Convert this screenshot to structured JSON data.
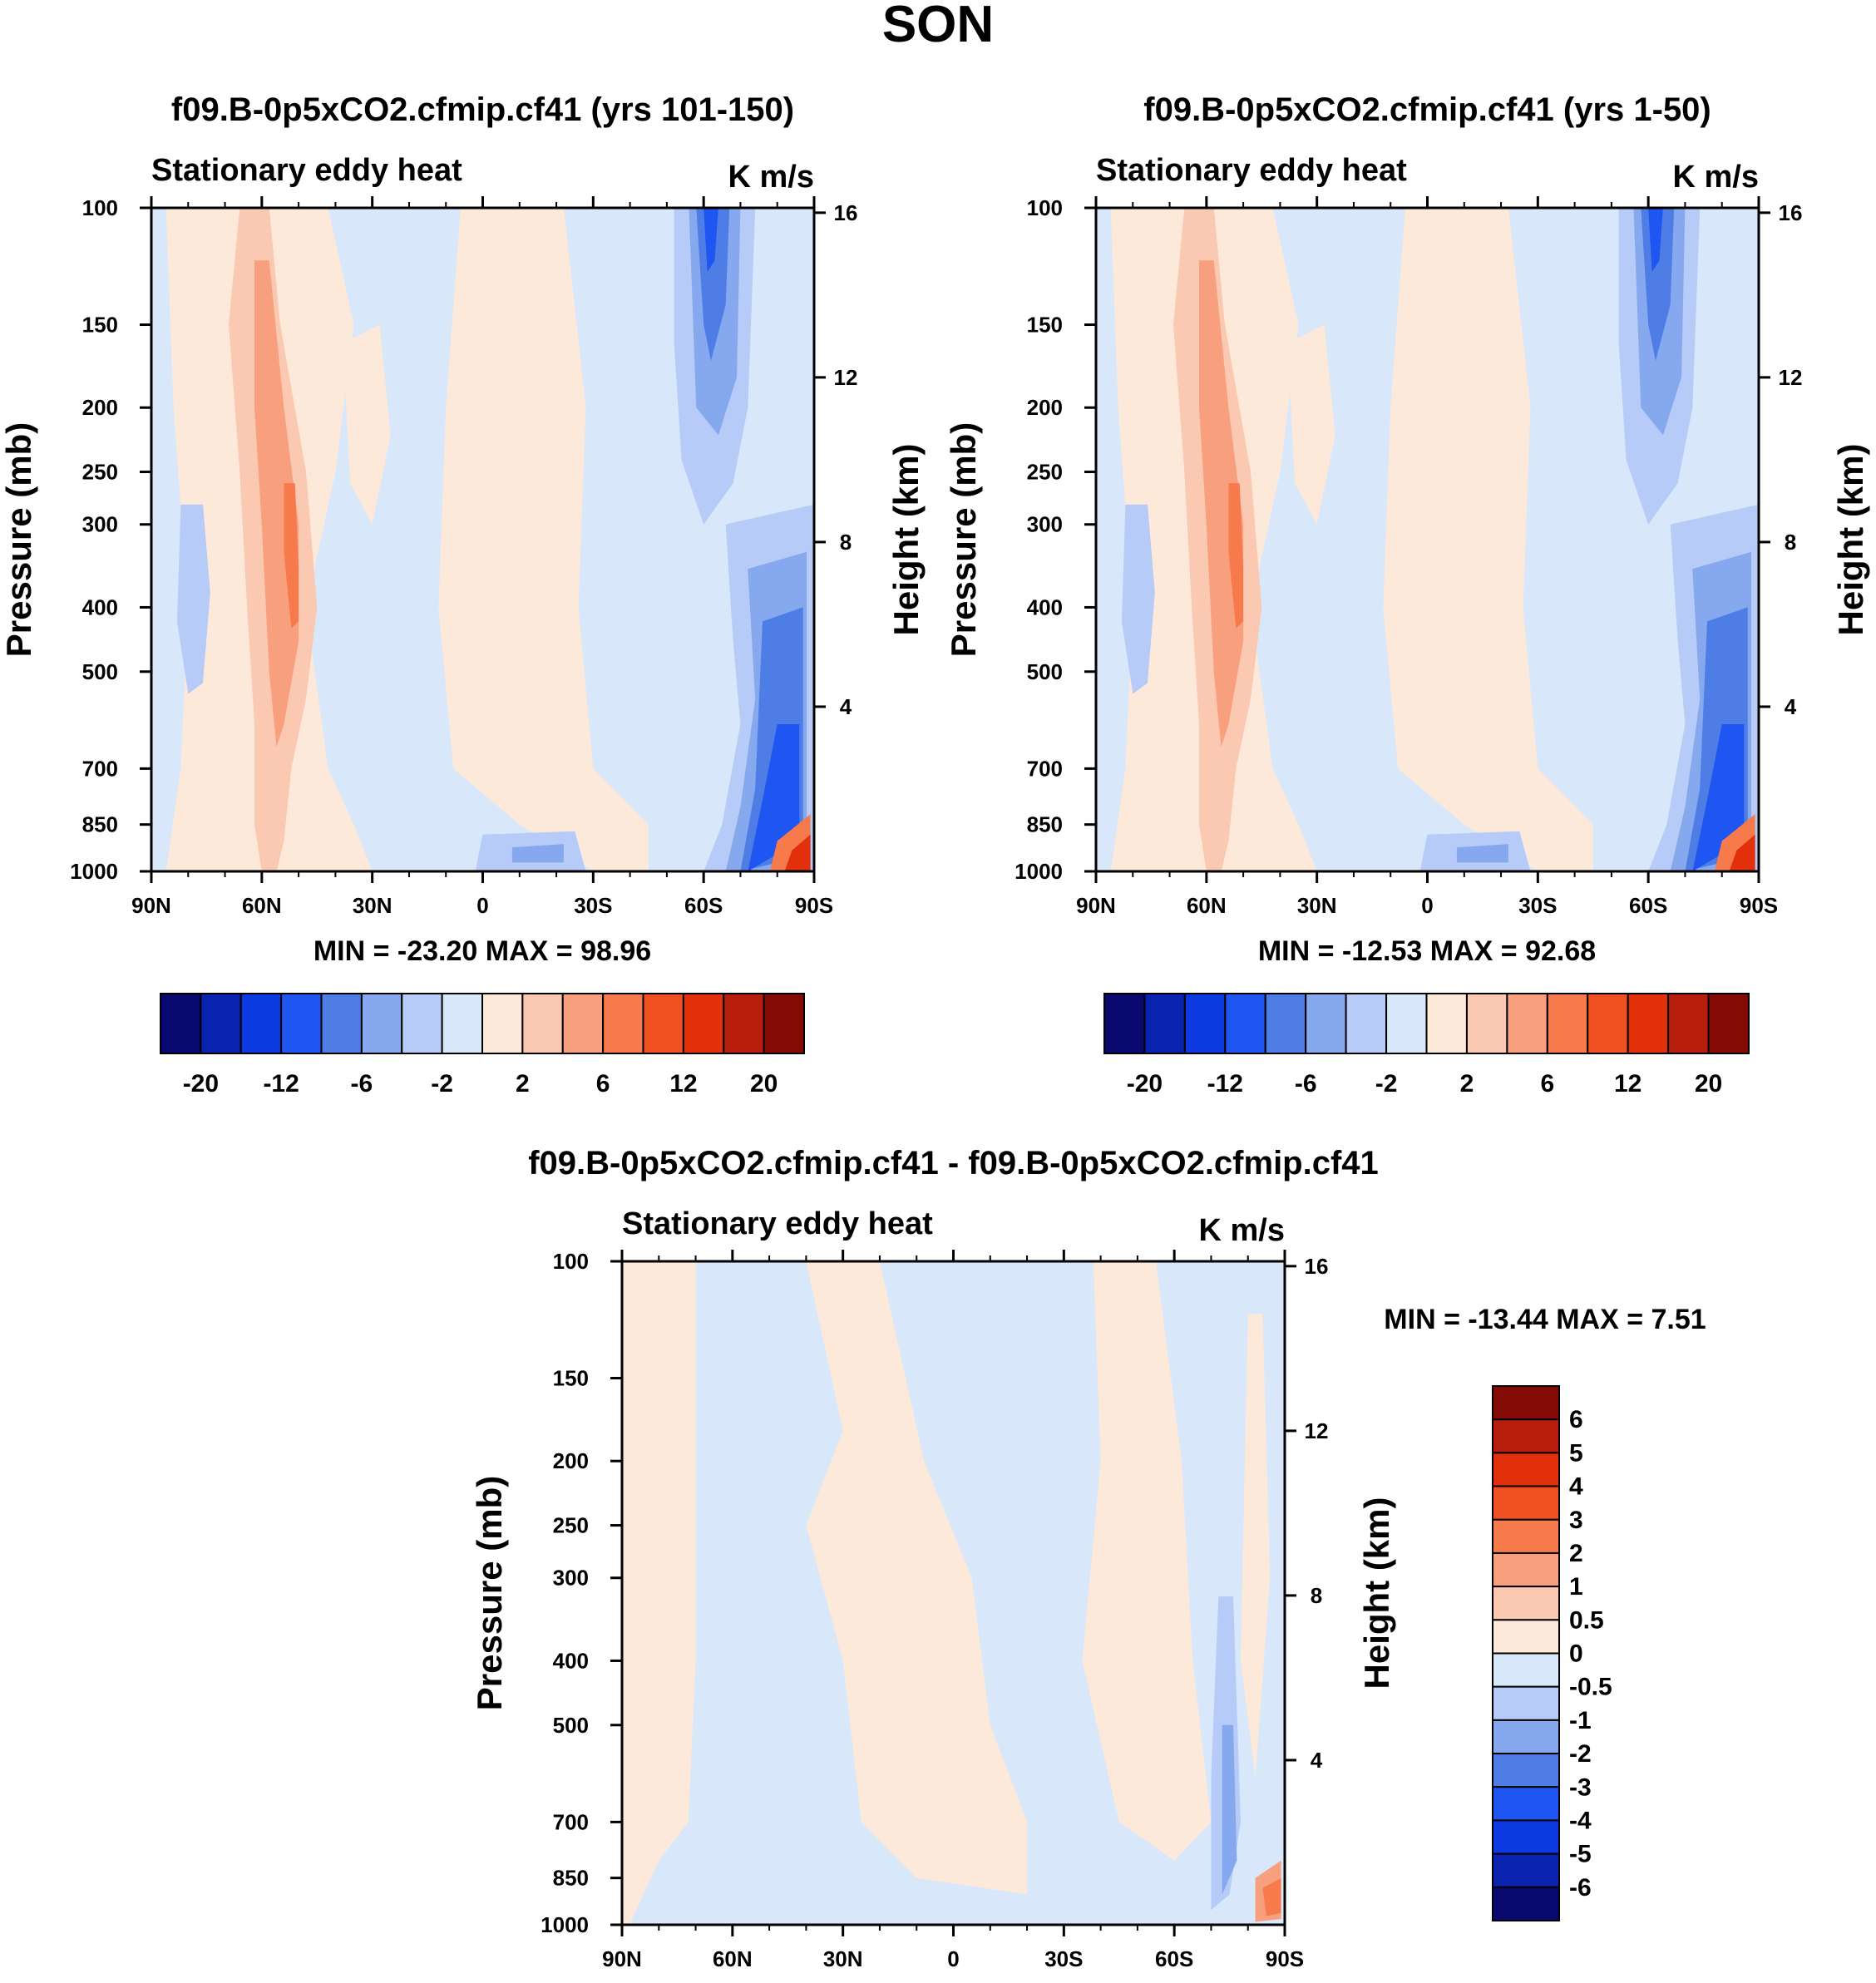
{
  "figure": {
    "season_title": "SON"
  },
  "chart_data": [
    {
      "type": "heatmap",
      "title": "f09.B-0p5xCO2.cfmip.cf41 (yrs 101-150)",
      "left_string": "Stationary eddy heat",
      "units": "K m/s",
      "ylabel": "Pressure (mb)",
      "ylabel_right": "Height (km)",
      "x_ticks": [
        "90N",
        "60N",
        "30N",
        "0",
        "30S",
        "60S",
        "90S"
      ],
      "x_values": [
        90,
        60,
        30,
        0,
        -30,
        -60,
        -90
      ],
      "y_ticks": [
        "100",
        "150",
        "200",
        "250",
        "300",
        "400",
        "500",
        "700",
        "850",
        "1000"
      ],
      "y_values": [
        100,
        150,
        200,
        250,
        300,
        400,
        500,
        700,
        850,
        1000
      ],
      "y_right_ticks": [
        "16",
        "12",
        "8",
        "4"
      ],
      "y_right_values": [
        16,
        12,
        8,
        4
      ],
      "xlim": [
        90,
        -90
      ],
      "ylim": [
        100,
        1000
      ],
      "min_max_text": "MIN = -23.20  MAX =  98.96",
      "min": -23.2,
      "max": 98.96,
      "levels": [
        -28,
        -20,
        -16,
        -12,
        -8,
        -6,
        -4,
        -2,
        -1,
        0,
        1,
        2,
        4,
        6,
        8,
        12,
        16,
        20,
        28
      ],
      "colorbar_labels": [
        "-20",
        "-12",
        "-6",
        "-2",
        "2",
        "6",
        "12",
        "20"
      ]
    },
    {
      "type": "heatmap",
      "title": "f09.B-0p5xCO2.cfmip.cf41 (yrs 1-50)",
      "left_string": "Stationary eddy heat",
      "units": "K m/s",
      "ylabel": "Pressure (mb)",
      "ylabel_right": "Height (km)",
      "x_ticks": [
        "90N",
        "60N",
        "30N",
        "0",
        "30S",
        "60S",
        "90S"
      ],
      "x_values": [
        90,
        60,
        30,
        0,
        -30,
        -60,
        -90
      ],
      "y_ticks": [
        "100",
        "150",
        "200",
        "250",
        "300",
        "400",
        "500",
        "700",
        "850",
        "1000"
      ],
      "y_values": [
        100,
        150,
        200,
        250,
        300,
        400,
        500,
        700,
        850,
        1000
      ],
      "y_right_ticks": [
        "16",
        "12",
        "8",
        "4"
      ],
      "y_right_values": [
        16,
        12,
        8,
        4
      ],
      "xlim": [
        90,
        -90
      ],
      "ylim": [
        100,
        1000
      ],
      "min_max_text": "MIN = -12.53  MAX =  92.68",
      "min": -12.53,
      "max": 92.68,
      "levels": [
        -28,
        -20,
        -16,
        -12,
        -8,
        -6,
        -4,
        -2,
        -1,
        0,
        1,
        2,
        4,
        6,
        8,
        12,
        16,
        20,
        28
      ],
      "colorbar_labels": [
        "-20",
        "-12",
        "-6",
        "-2",
        "2",
        "6",
        "12",
        "20"
      ]
    },
    {
      "type": "heatmap",
      "title": "f09.B-0p5xCO2.cfmip.cf41 - f09.B-0p5xCO2.cfmip.cf41",
      "left_string": "Stationary eddy heat",
      "units": "K m/s",
      "ylabel": "Pressure (mb)",
      "ylabel_right": "Height (km)",
      "x_ticks": [
        "90N",
        "60N",
        "30N",
        "0",
        "30S",
        "60S",
        "90S"
      ],
      "x_values": [
        90,
        60,
        30,
        0,
        -30,
        -60,
        -90
      ],
      "y_ticks": [
        "100",
        "150",
        "200",
        "250",
        "300",
        "400",
        "500",
        "700",
        "850",
        "1000"
      ],
      "y_values": [
        100,
        150,
        200,
        250,
        300,
        400,
        500,
        700,
        850,
        1000
      ],
      "y_right_ticks": [
        "16",
        "12",
        "8",
        "4"
      ],
      "y_right_values": [
        16,
        12,
        8,
        4
      ],
      "xlim": [
        90,
        -90
      ],
      "ylim": [
        100,
        1000
      ],
      "min_max_text": "MIN = -13.44  MAX =   7.51",
      "min": -13.44,
      "max": 7.51,
      "levels": [
        -7,
        -6,
        -5,
        -4,
        -3,
        -2,
        -1,
        -0.5,
        0,
        0.5,
        1,
        2,
        3,
        4,
        5,
        6,
        7
      ],
      "colorbar_labels": [
        "6",
        "5",
        "4",
        "3",
        "2",
        "1",
        "0.5",
        "0",
        "-0.5",
        "-1",
        "-2",
        "-3",
        "-4",
        "-5",
        "-6"
      ]
    }
  ],
  "colors": {
    "palette14": [
      "#08086e",
      "#0a22b0",
      "#0c3ae0",
      "#1f55f0",
      "#4f7de6",
      "#86a8ee",
      "#b6cbf7",
      "#d8e7fa",
      "#fde9d9",
      "#fbc8b2",
      "#f8a07e",
      "#f77a4c",
      "#f05022",
      "#e2300a",
      "#b71f0c",
      "#840a05"
    ],
    "palette_diff": [
      "#08086e",
      "#0a22b0",
      "#0c3ae0",
      "#1f55f0",
      "#4f7de6",
      "#86a8ee",
      "#b6cbf7",
      "#d8e7fa",
      "#fde9d9",
      "#fbc8b2",
      "#f8a07e",
      "#f77a4c",
      "#f05022",
      "#e2300a",
      "#b71f0c",
      "#840a05"
    ]
  }
}
